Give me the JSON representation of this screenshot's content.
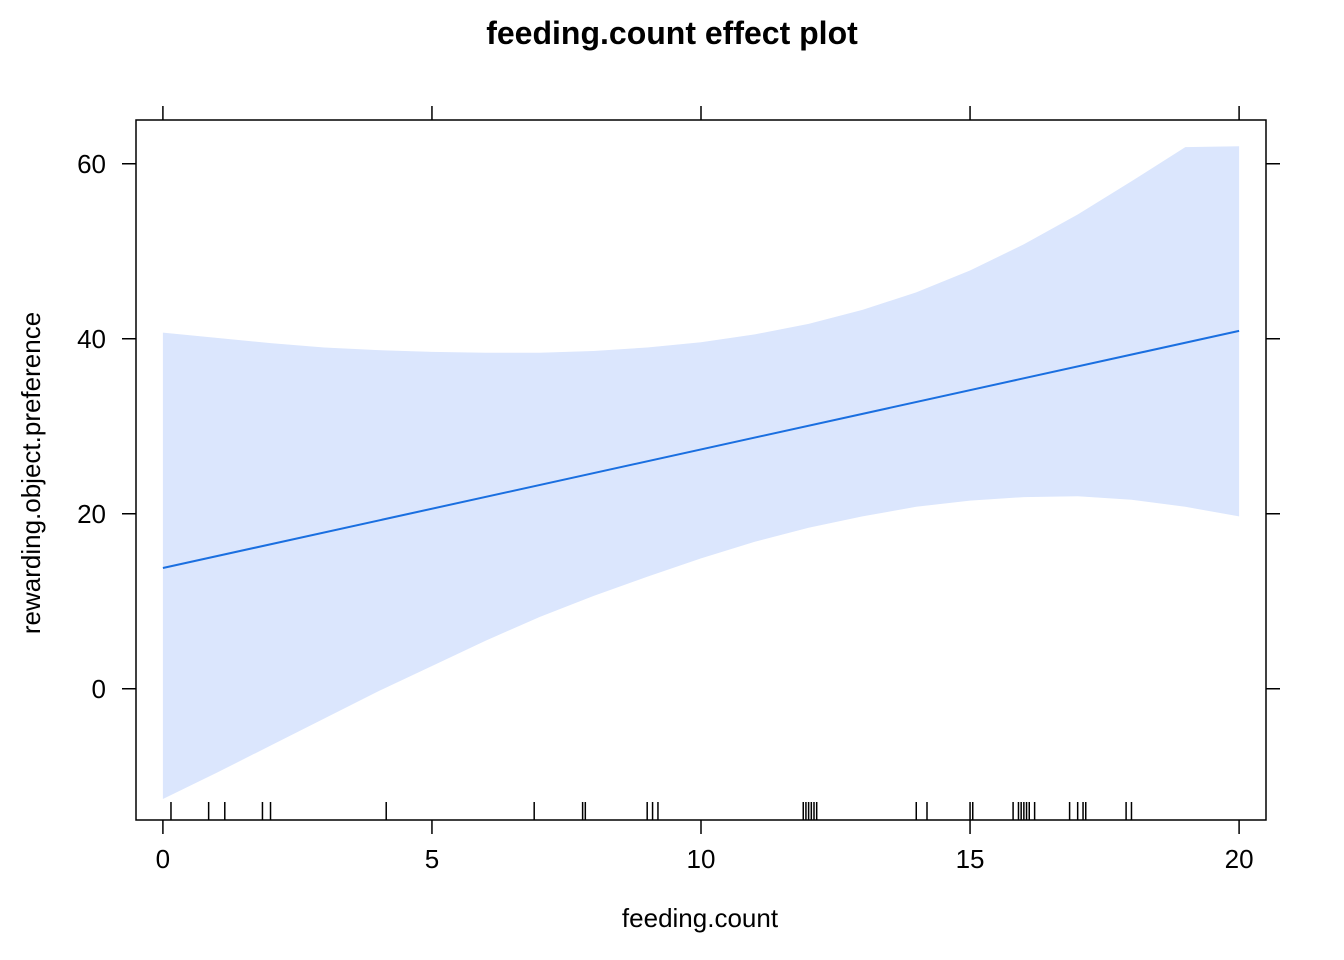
{
  "chart_data": {
    "type": "line",
    "title": "feeding.count effect plot",
    "xlabel": "feeding.count",
    "ylabel": "rewarding.object.preference",
    "xlim": [
      -0.5,
      20.5
    ],
    "ylim": [
      -15,
      65
    ],
    "x_ticks": [
      "0",
      "5",
      "10",
      "15",
      "20"
    ],
    "y_ticks": [
      "0",
      "20",
      "40",
      "60"
    ],
    "x_tick_values": [
      0,
      5,
      10,
      15,
      20
    ],
    "y_tick_values": [
      0,
      20,
      40,
      60
    ],
    "grid": false,
    "colors": {
      "line": "#1a6fe0",
      "band": "#dbe6fd",
      "frame": "#000000"
    },
    "series": [
      {
        "x": [
          0,
          20
        ],
        "y": [
          13.8,
          40.9
        ]
      }
    ],
    "confidence_band": {
      "x": [
        0,
        1,
        2,
        3,
        4,
        5,
        6,
        7,
        8,
        9,
        10,
        11,
        12,
        13,
        14,
        15,
        16,
        17,
        18,
        19,
        20
      ],
      "upper": [
        40.7,
        40.1,
        39.5,
        39.0,
        38.7,
        38.5,
        38.4,
        38.4,
        38.6,
        39.0,
        39.6,
        40.5,
        41.7,
        43.3,
        45.3,
        47.8,
        50.8,
        54.2,
        58.0,
        61.9,
        62.0
      ],
      "lower": [
        -12.6,
        -9.6,
        -6.5,
        -3.4,
        -0.3,
        2.6,
        5.5,
        8.2,
        10.6,
        12.8,
        14.9,
        16.8,
        18.4,
        19.7,
        20.8,
        21.5,
        21.9,
        22.0,
        21.6,
        20.8,
        19.7
      ]
    },
    "rug": [
      0.15,
      0.85,
      1.15,
      1.85,
      2.0,
      4.15,
      6.9,
      7.8,
      7.85,
      9.0,
      9.1,
      9.2,
      11.9,
      11.95,
      12.0,
      12.05,
      12.1,
      12.15,
      14.0,
      14.2,
      15.0,
      15.05,
      15.8,
      15.9,
      15.95,
      16.0,
      16.05,
      16.1,
      16.2,
      16.85,
      17.0,
      17.1,
      17.15,
      17.9,
      18.0
    ]
  }
}
